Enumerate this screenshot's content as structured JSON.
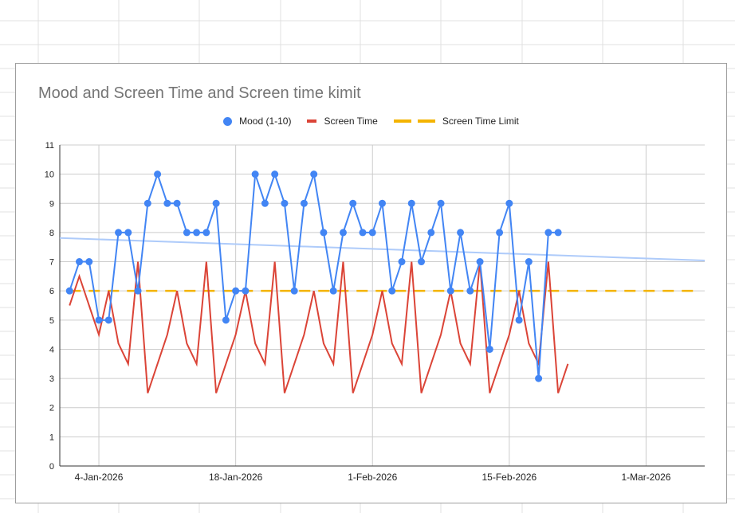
{
  "chart_data": {
    "type": "line",
    "title": "Mood and Screen Time and Screen time kimit",
    "legend_position": "top",
    "grid": true,
    "xlabel": "",
    "ylabel": "",
    "x_type": "date",
    "xlim": [
      "2025-12-31",
      "2026-03-07"
    ],
    "ylim": [
      0,
      11
    ],
    "y_ticks": [
      "0",
      "1",
      "2",
      "3",
      "4",
      "5",
      "6",
      "7",
      "8",
      "9",
      "10",
      "11"
    ],
    "x_ticks": [
      {
        "date": "2026-01-04",
        "label": "4-Jan-2026"
      },
      {
        "date": "2026-01-18",
        "label": "18-Jan-2026"
      },
      {
        "date": "2026-02-01",
        "label": "1-Feb-2026"
      },
      {
        "date": "2026-02-15",
        "label": "15-Feb-2026"
      },
      {
        "date": "2026-03-01",
        "label": "1-Mar-2026"
      }
    ],
    "start_date": "2026-01-01",
    "series": [
      {
        "name": "Mood (1-10)",
        "color": "#4285f4",
        "style": "line-with-points",
        "trendline": {
          "type": "linear",
          "color": "#aecbfa"
        },
        "values": [
          6,
          7,
          7,
          5,
          5,
          8,
          8,
          6,
          9,
          10,
          9,
          9,
          8,
          8,
          8,
          9,
          5,
          6,
          6,
          10,
          9,
          10,
          9,
          6,
          9,
          10,
          8,
          6,
          8,
          9,
          8,
          8,
          9,
          6,
          7,
          9,
          7,
          8,
          9,
          6,
          8,
          6,
          7,
          4,
          8,
          9,
          5,
          7,
          3,
          8,
          8
        ]
      },
      {
        "name": "Screen Time",
        "color": "#db4437",
        "style": "line",
        "values": [
          5.5,
          6.5,
          5.5,
          4.5,
          6,
          4.2,
          3.5,
          7,
          2.5,
          3.5,
          4.5,
          6,
          4.2,
          3.5,
          7,
          2.5,
          3.5,
          4.5,
          6,
          4.2,
          3.5,
          7,
          2.5,
          3.5,
          4.5,
          6,
          4.2,
          3.5,
          7,
          2.5,
          3.5,
          4.5,
          6,
          4.2,
          3.5,
          7,
          2.5,
          3.5,
          4.5,
          6,
          4.2,
          3.5,
          7,
          2.5,
          3.5,
          4.5,
          6,
          4.2,
          3.5,
          7,
          2.5,
          3.5
        ]
      },
      {
        "name": "Screen Time Limit",
        "color": "#f4b400",
        "style": "dashed",
        "constant": 6
      }
    ]
  }
}
